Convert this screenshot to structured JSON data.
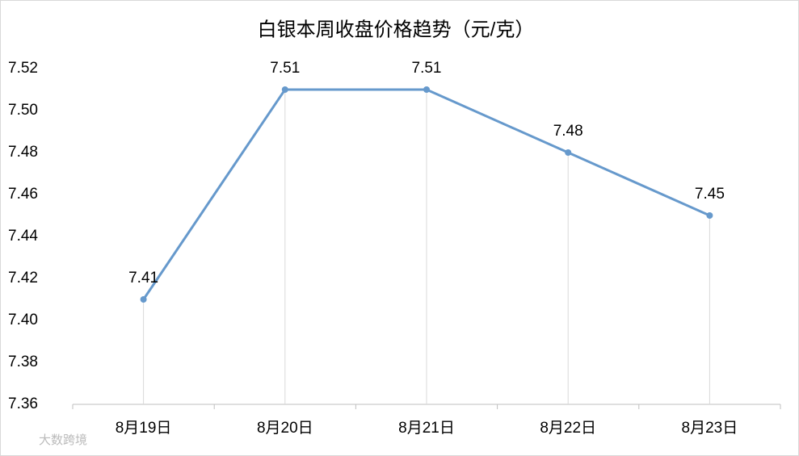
{
  "chart_data": {
    "type": "line",
    "title": "白银本周收盘价格趋势（元/克）",
    "categories": [
      "8月19日",
      "8月20日",
      "8月21日",
      "8月22日",
      "8月23日"
    ],
    "series": [
      {
        "name": "白银",
        "color": "#6699cc",
        "values": [
          7.41,
          7.51,
          7.51,
          7.48,
          7.45
        ]
      }
    ],
    "ylim": [
      7.36,
      7.52
    ],
    "yticks": [
      7.36,
      7.38,
      {
        "value": 7.4,
        "label": "7.40"
      },
      7.42,
      7.44,
      7.46,
      7.48,
      {
        "value": 7.5,
        "label": "7.50"
      },
      7.52
    ],
    "drop_lines": true,
    "watermark": "大数跨境"
  }
}
